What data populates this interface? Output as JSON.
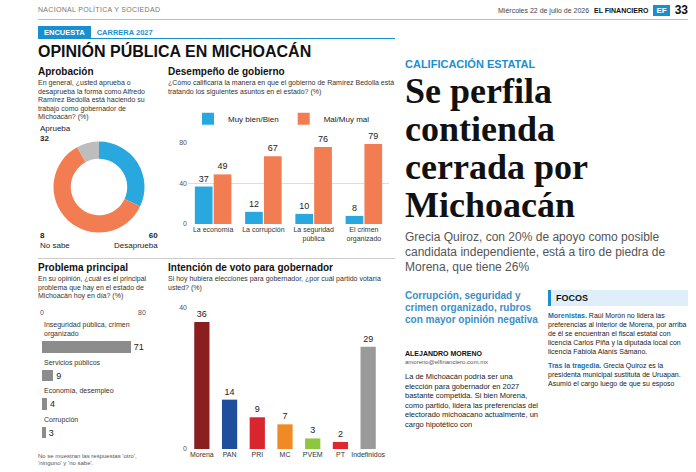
{
  "header": {
    "section": "NACIONAL POLÍTICA Y SOCIEDAD",
    "date": "Miércoles 22 de julio de 2026",
    "paper": "EL FINANCIERO",
    "logo": "EF",
    "page": "33"
  },
  "tag": {
    "label": "ENCUESTA",
    "text": "CARRERA 2027"
  },
  "title": "OPINIÓN PÚBLICA EN MICHOACÁN",
  "chart_data": [
    {
      "type": "pie",
      "title": "Aprobación",
      "subtitle": "En general, ¿usted aprueba o desaprueba la forma como Alfredo Ramírez Bedolla está haciendo su trabajo como gobernador de Michoacán? (%)",
      "categories": [
        "Aprueba",
        "No sabe",
        "Desaprueba"
      ],
      "values": [
        32,
        8,
        60
      ],
      "colors": [
        "#29a8e0",
        "#bdbdbd",
        "#f27d52"
      ],
      "data_labels": true
    },
    {
      "type": "bar",
      "title": "Desempeño de gobierno",
      "subtitle": "¿Cómo calificaría la manera en que el gobierno de Ramírez Bedolla está tratando los siguientes asuntos en el estado? (%)",
      "categories": [
        "La economía",
        "La corrupción",
        "La seguridad pública",
        "El crimen organizado"
      ],
      "series": [
        {
          "name": "Muy bien/Bien",
          "color": "#29a8e0",
          "values": [
            37,
            12,
            10,
            8
          ]
        },
        {
          "name": "Mal/Muy mal",
          "color": "#f27d52",
          "values": [
            49,
            67,
            76,
            79
          ]
        }
      ],
      "ylim": [
        0,
        80
      ],
      "yticks": [
        0,
        40,
        80
      ],
      "grid": true,
      "data_labels": true,
      "legend": "top-left"
    },
    {
      "type": "bar",
      "orientation": "horizontal",
      "title": "Problema principal",
      "subtitle": "En su opinión, ¿cuál es el principal problema que hay en el estado de Michoacán hoy en día? (%)",
      "categories": [
        "Inseguridad pública, crimen organizado",
        "Servicios públicos",
        "Economía, desempleo",
        "Corrupción"
      ],
      "values": [
        71,
        9,
        4,
        3
      ],
      "color": "#8c8c8c",
      "xlim": [
        0,
        80
      ],
      "xticks": [
        0,
        80
      ],
      "grid": false,
      "data_labels": true,
      "note": "No se muestran las respuestas 'otro', 'ninguno' y 'no sabe'."
    },
    {
      "type": "bar",
      "title": "Intención de voto para gobernador",
      "subtitle": "Si hoy hubiera elecciones para gobernador, ¿por cuál partido votaría usted? (%)",
      "categories": [
        "Morena",
        "PAN",
        "PRI",
        "MC",
        "PVEM",
        "PT",
        "Indefinidos"
      ],
      "values": [
        36,
        14,
        9,
        7,
        3,
        2,
        29
      ],
      "colors": [
        "#8b1f1f",
        "#1f4e9c",
        "#d9262e",
        "#f08a24",
        "#8dc63f",
        "#e0262e",
        "#9a9a9a"
      ],
      "ylim": [
        0,
        40
      ],
      "yticks": [
        0,
        40
      ],
      "grid": true,
      "data_labels": true
    }
  ],
  "article": {
    "kicker": "CALIFICACIÓN ESTATAL",
    "headline": "Se perfila contienda cerrada por Michoacán",
    "deck": "Grecia Quiroz, con 20% de apoyo como posible candidata independiente, está a tiro de piedra de Morena, que tiene 26%",
    "summary": "Corrupción, seguridad y crimen organizado, rubros con mayor opinión negativa",
    "author": "ALEJANDRO MORENO",
    "email": "amoreno@elfinanciero.com.mx",
    "body": "La de Michoacán podría ser una elección para gobernador en 2027 bastante competida. Si bien Morena, como partido, lidera las preferencias del electorado michoacano actualmente, un cargo hipotético con",
    "sidebar": {
      "title": "FOCOS",
      "items": [
        {
          "lead": "Morenistas.",
          "text": "Raúl Morón no lidera las preferencias al interior de Morena, por arriba de él se encuentran el fiscal estatal con licencia Carlos Piña y la diputada local con licencia Fabiola Alanís Sámano."
        },
        {
          "lead": "Tras la tragedia.",
          "text": "Grecia Quiroz es la presidenta municipal sustituta de Uruapan. Asumió el cargo luego de que su esposo"
        }
      ]
    }
  }
}
